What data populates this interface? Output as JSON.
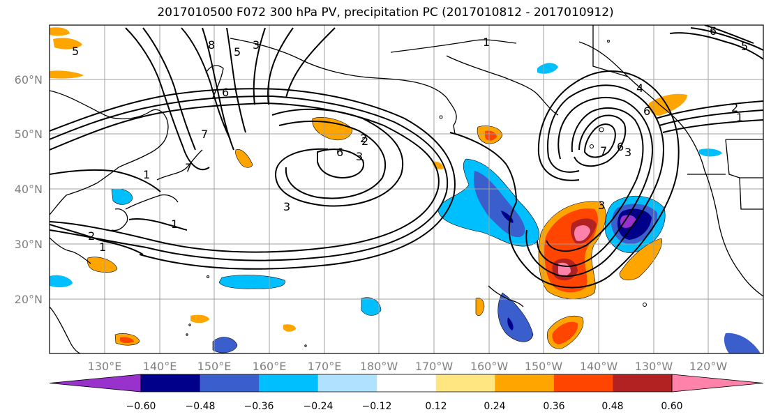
{
  "title": "2017010500 F072 300 hPa PV, precipitation PC (2017010812 - 2017010912)",
  "lat_labels": [
    "60°N",
    "50°N",
    "40°N",
    "30°N",
    "20°N"
  ],
  "lon_labels": [
    "130°E",
    "140°E",
    "150°E",
    "160°E",
    "170°E",
    "180°W",
    "170°W",
    "160°W",
    "150°W",
    "140°W",
    "130°W",
    "120°W"
  ],
  "colorbar": {
    "ticks": [
      "−0.60",
      "−0.48",
      "−0.36",
      "−0.24",
      "−0.12",
      "0.12",
      "0.24",
      "0.36",
      "0.48",
      "0.60"
    ],
    "colors": [
      "#9932cc",
      "#00008b",
      "#3a5fcd",
      "#00bfff",
      "#b0e2ff",
      "#ffffff",
      "#ffe680",
      "#ffa500",
      "#ff4500",
      "#b22222",
      "#ff82ab"
    ]
  },
  "contour_labels": [
    "5",
    "8",
    "5",
    "3",
    "6",
    "7",
    "1",
    "2",
    "1",
    "7",
    "6",
    "3",
    "2",
    "3",
    "1",
    "1",
    "6",
    "2",
    "2",
    "1",
    "4",
    "7",
    "6",
    "3",
    "3",
    "6",
    "5"
  ],
  "chart_data": {
    "type": "map",
    "title": "2017010500 F072 300 hPa PV, precipitation PC (2017010812 - 2017010912)",
    "lon_range": [
      "120°E",
      "115°W"
    ],
    "lat_range": [
      "10°N",
      "70°N"
    ],
    "grid": true,
    "colorbar_levels": [
      -0.6,
      -0.48,
      -0.36,
      -0.24,
      -0.12,
      0.12,
      0.24,
      0.36,
      0.48,
      0.6
    ],
    "colorbar_extend": "both"
  }
}
